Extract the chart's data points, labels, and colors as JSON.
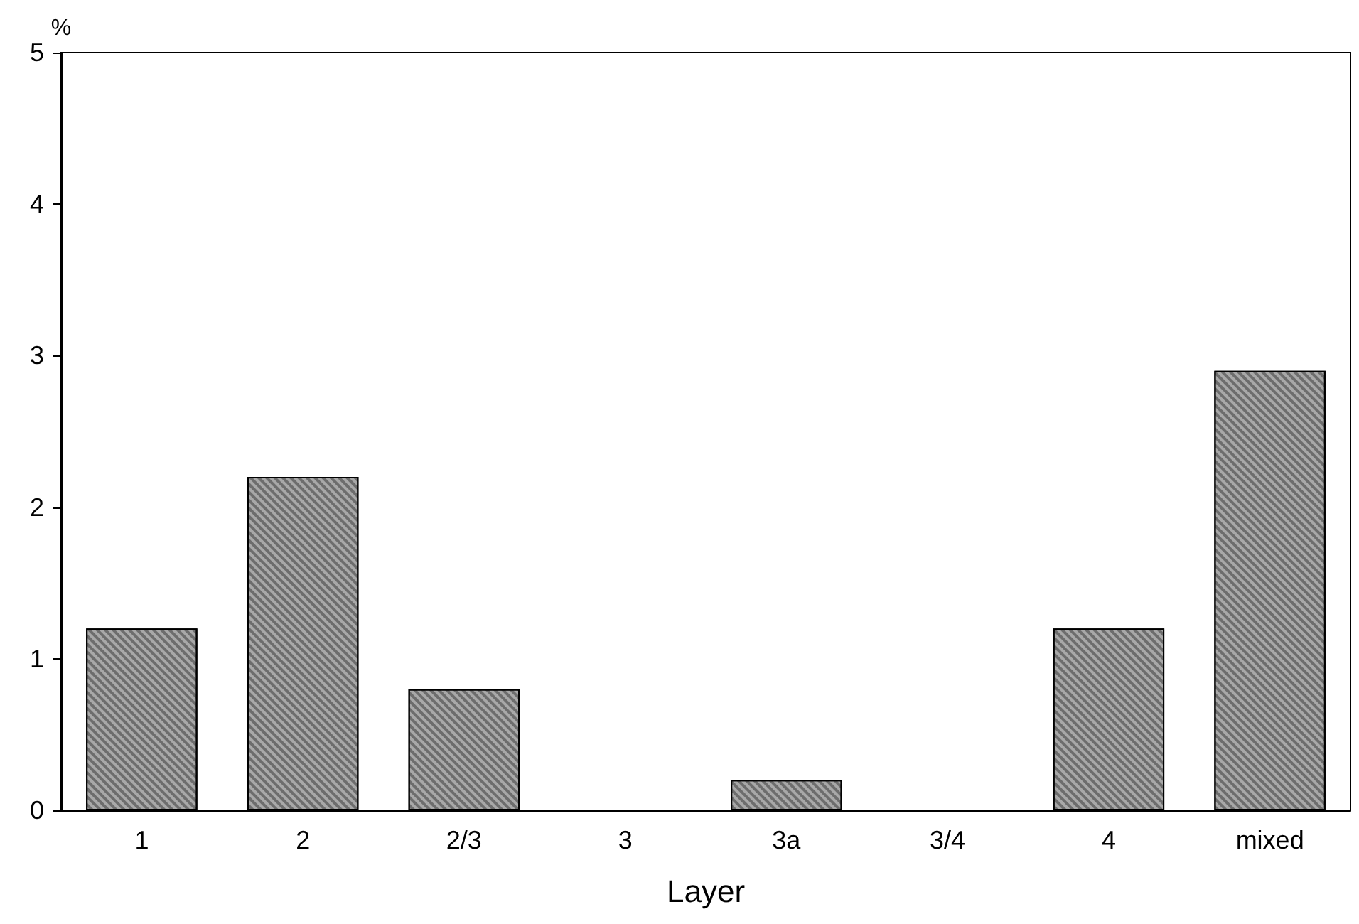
{
  "chart_data": {
    "type": "bar",
    "ylabel": "%",
    "xlabel": "Layer",
    "categories": [
      "1",
      "2",
      "2/3",
      "3",
      "3a",
      "3/4",
      "4",
      "mixed"
    ],
    "values": [
      1.2,
      2.2,
      0.8,
      0,
      0.2,
      0,
      1.2,
      2.9
    ],
    "color": "#a8a8a8",
    "ylim": [
      0,
      5
    ],
    "yticks": [
      0,
      1,
      2,
      3,
      4,
      5
    ],
    "grid": false
  }
}
